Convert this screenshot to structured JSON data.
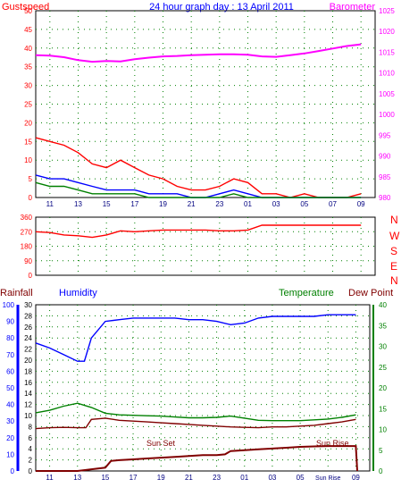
{
  "colors": {
    "gust": "#ff0000",
    "wind_avg": "#0000ff",
    "wind_low": "#008000",
    "barometer": "#ff00ff",
    "direction": "#ff0000",
    "humidity": "#0000ff",
    "temperature": "#008000",
    "dewpoint": "#800000",
    "rainfall": "#800000",
    "axis_left_bottom": "#0000ff",
    "axis_right_bottom": "#008000",
    "grid": "#008000"
  },
  "header": {
    "left_title": "Gustspeed",
    "center_title": "24 hour graph day : 13 April 2011",
    "right_title": "Barometer"
  },
  "bottom_header": {
    "rainfall": "Rainfall",
    "humidity": "Humidity",
    "temperature": "Temperature",
    "dewpoint": "Dew Point"
  },
  "annotations": {
    "sunset": "Sun Set",
    "sunrise": "Sun Rise"
  },
  "compass": [
    "N",
    "W",
    "S",
    "E",
    "N"
  ],
  "chart_data": [
    {
      "type": "line",
      "title": "24 hour graph day : 13 April 2011",
      "x_ticks": [
        "11",
        "13",
        "15",
        "17",
        "19",
        "21",
        "23",
        "01",
        "03",
        "05",
        "07",
        "09"
      ],
      "y_left": {
        "label": "Gustspeed",
        "ticks": [
          0,
          5,
          10,
          15,
          20,
          25,
          30,
          35,
          40,
          45,
          50
        ],
        "lim": [
          0,
          50
        ]
      },
      "y_right": {
        "label": "Barometer",
        "ticks": [
          980,
          985,
          990,
          995,
          1000,
          1005,
          1010,
          1015,
          1020,
          1025
        ],
        "lim": [
          980,
          1025
        ]
      },
      "series": [
        {
          "name": "Gustspeed",
          "axis": "left",
          "x": [
            10,
            11,
            12,
            13,
            14,
            15,
            16,
            17,
            18,
            19,
            20,
            21,
            22,
            23,
            24,
            25,
            26,
            27,
            28,
            29,
            30,
            31,
            32,
            33
          ],
          "values": [
            16,
            15,
            14,
            12,
            9,
            8,
            10,
            8,
            6,
            5,
            3,
            2,
            2,
            3,
            5,
            4,
            1,
            1,
            0,
            1,
            0,
            0,
            0,
            1
          ]
        },
        {
          "axis": "left",
          "x": [
            10,
            11,
            12,
            13,
            14,
            15,
            16,
            17,
            18,
            19,
            20,
            21,
            22,
            23,
            24,
            25,
            26,
            27,
            28,
            29,
            30,
            31,
            32,
            33
          ],
          "values": [
            6,
            5,
            5,
            4,
            3,
            2,
            2,
            2,
            1,
            1,
            1,
            0,
            0,
            1,
            2,
            1,
            0,
            0,
            0,
            0,
            0,
            0,
            0,
            0
          ]
        },
        {
          "axis": "left",
          "x": [
            10,
            11,
            12,
            13,
            14,
            15,
            16,
            17,
            18,
            19,
            20,
            21,
            22,
            23,
            24,
            25,
            26,
            27,
            28,
            29,
            30,
            31,
            32,
            33
          ],
          "values": [
            4,
            3,
            3,
            2,
            1,
            1,
            1,
            1,
            0,
            0,
            0,
            0,
            0,
            0,
            1,
            0,
            0,
            0,
            0,
            0,
            0,
            0,
            0,
            0
          ]
        },
        {
          "name": "Barometer",
          "axis": "right",
          "x": [
            10,
            11,
            12,
            13,
            14,
            15,
            16,
            17,
            18,
            19,
            20,
            21,
            22,
            23,
            24,
            25,
            26,
            27,
            28,
            29,
            30,
            31,
            32,
            33
          ],
          "values": [
            1014.3,
            1014.2,
            1013.8,
            1013.1,
            1012.7,
            1012.9,
            1012.8,
            1013.3,
            1013.7,
            1014.0,
            1014.1,
            1014.3,
            1014.4,
            1014.5,
            1014.5,
            1014.4,
            1014.0,
            1013.9,
            1014.3,
            1014.7,
            1015.3,
            1015.9,
            1016.5,
            1016.9
          ]
        }
      ]
    },
    {
      "type": "line",
      "title": "",
      "x_ticks": [
        "11",
        "13",
        "15",
        "17",
        "19",
        "21",
        "23",
        "01",
        "03",
        "05",
        "07",
        "09"
      ],
      "y_left": {
        "label": "",
        "ticks": [
          0,
          90,
          180,
          270,
          360
        ],
        "lim": [
          0,
          360
        ]
      },
      "y_right_labels": [
        "N",
        "W",
        "S",
        "E",
        "N"
      ],
      "series": [
        {
          "axis": "left",
          "x": [
            10,
            11,
            12,
            13,
            14,
            15,
            16,
            17,
            18,
            19,
            20,
            21,
            22,
            23,
            24,
            25,
            26,
            27,
            28,
            29,
            30,
            31,
            32,
            33
          ],
          "values": [
            270,
            265,
            250,
            245,
            235,
            250,
            275,
            270,
            275,
            280,
            280,
            280,
            280,
            275,
            275,
            280,
            310,
            310,
            310,
            310,
            310,
            310,
            310,
            310
          ]
        }
      ]
    },
    {
      "type": "line",
      "title": "",
      "x_ticks": [
        "11",
        "13",
        "15",
        "17",
        "19",
        "21",
        "23",
        "01",
        "03",
        "05",
        "Sun Rise",
        "09"
      ],
      "y_left_outer": {
        "label": "Rainfall",
        "ticks": [
          0,
          10,
          20,
          30,
          40,
          50,
          60,
          70,
          80,
          90,
          100
        ],
        "lim": [
          0,
          100
        ]
      },
      "y_left_inner": {
        "label": "Humidity",
        "ticks": [
          0,
          2,
          4,
          6,
          8,
          10,
          12,
          14,
          16,
          18,
          20,
          22,
          24,
          26,
          28,
          30
        ],
        "lim": [
          0,
          30
        ]
      },
      "y_right": {
        "label": "Temperature",
        "ticks": [
          0,
          5,
          10,
          15,
          20,
          25,
          30,
          35,
          40
        ],
        "lim": [
          0,
          40
        ]
      },
      "y_right_extra_label": "Dew Point",
      "series": [
        {
          "name": "Humidity",
          "axis": "outer",
          "x": [
            10,
            11,
            12,
            13,
            13.5,
            14,
            15,
            16,
            17,
            18,
            19,
            20,
            21,
            22,
            23,
            24,
            25,
            26,
            27,
            28,
            29,
            30,
            31,
            32,
            33
          ],
          "values": [
            77,
            74,
            70,
            66,
            66,
            80,
            90,
            91,
            92,
            92,
            92,
            92,
            91,
            91,
            90,
            88,
            89,
            92,
            93,
            93,
            93,
            93,
            94,
            94,
            94
          ]
        },
        {
          "name": "Temperature",
          "axis": "right",
          "x": [
            10,
            11,
            12,
            13,
            14,
            15,
            16,
            17,
            18,
            19,
            20,
            21,
            22,
            23,
            24,
            25,
            26,
            27,
            28,
            29,
            30,
            31,
            32,
            33
          ],
          "values": [
            14.0,
            14.6,
            15.6,
            16.3,
            15.3,
            13.9,
            13.5,
            13.4,
            13.3,
            13.2,
            13.0,
            12.8,
            12.8,
            12.9,
            13.2,
            12.7,
            12.2,
            12.1,
            12.1,
            12.1,
            12.3,
            12.5,
            12.9,
            13.5
          ]
        },
        {
          "name": "Dew Point",
          "axis": "right",
          "x": [
            10,
            11,
            12,
            13,
            13.6,
            14,
            15,
            16,
            17,
            18,
            19,
            20,
            21,
            22,
            23,
            24,
            25,
            26,
            27,
            28,
            29,
            30,
            31,
            32,
            33
          ],
          "values": [
            10.2,
            10.4,
            10.5,
            10.4,
            10.4,
            12.4,
            12.7,
            12.2,
            12.0,
            11.8,
            11.6,
            11.4,
            11.2,
            11.0,
            10.8,
            10.6,
            10.5,
            10.4,
            10.6,
            10.6,
            10.8,
            11.0,
            11.4,
            11.8,
            12.4
          ]
        },
        {
          "name": "Rainfall",
          "axis": "outer",
          "x": [
            10,
            11,
            12,
            13,
            14,
            15,
            15.4,
            16,
            17,
            18,
            19,
            20,
            21,
            22,
            23,
            23.6,
            24,
            25,
            26,
            27,
            28,
            29,
            30,
            31,
            32,
            33,
            33.1
          ],
          "values": [
            0,
            0,
            0,
            0,
            1,
            2,
            6,
            6.5,
            7,
            7.5,
            8,
            8.5,
            9,
            9.5,
            9.5,
            10,
            12,
            12.5,
            13,
            13.5,
            14,
            14.5,
            14.8,
            15,
            15,
            15,
            0
          ]
        }
      ]
    }
  ]
}
